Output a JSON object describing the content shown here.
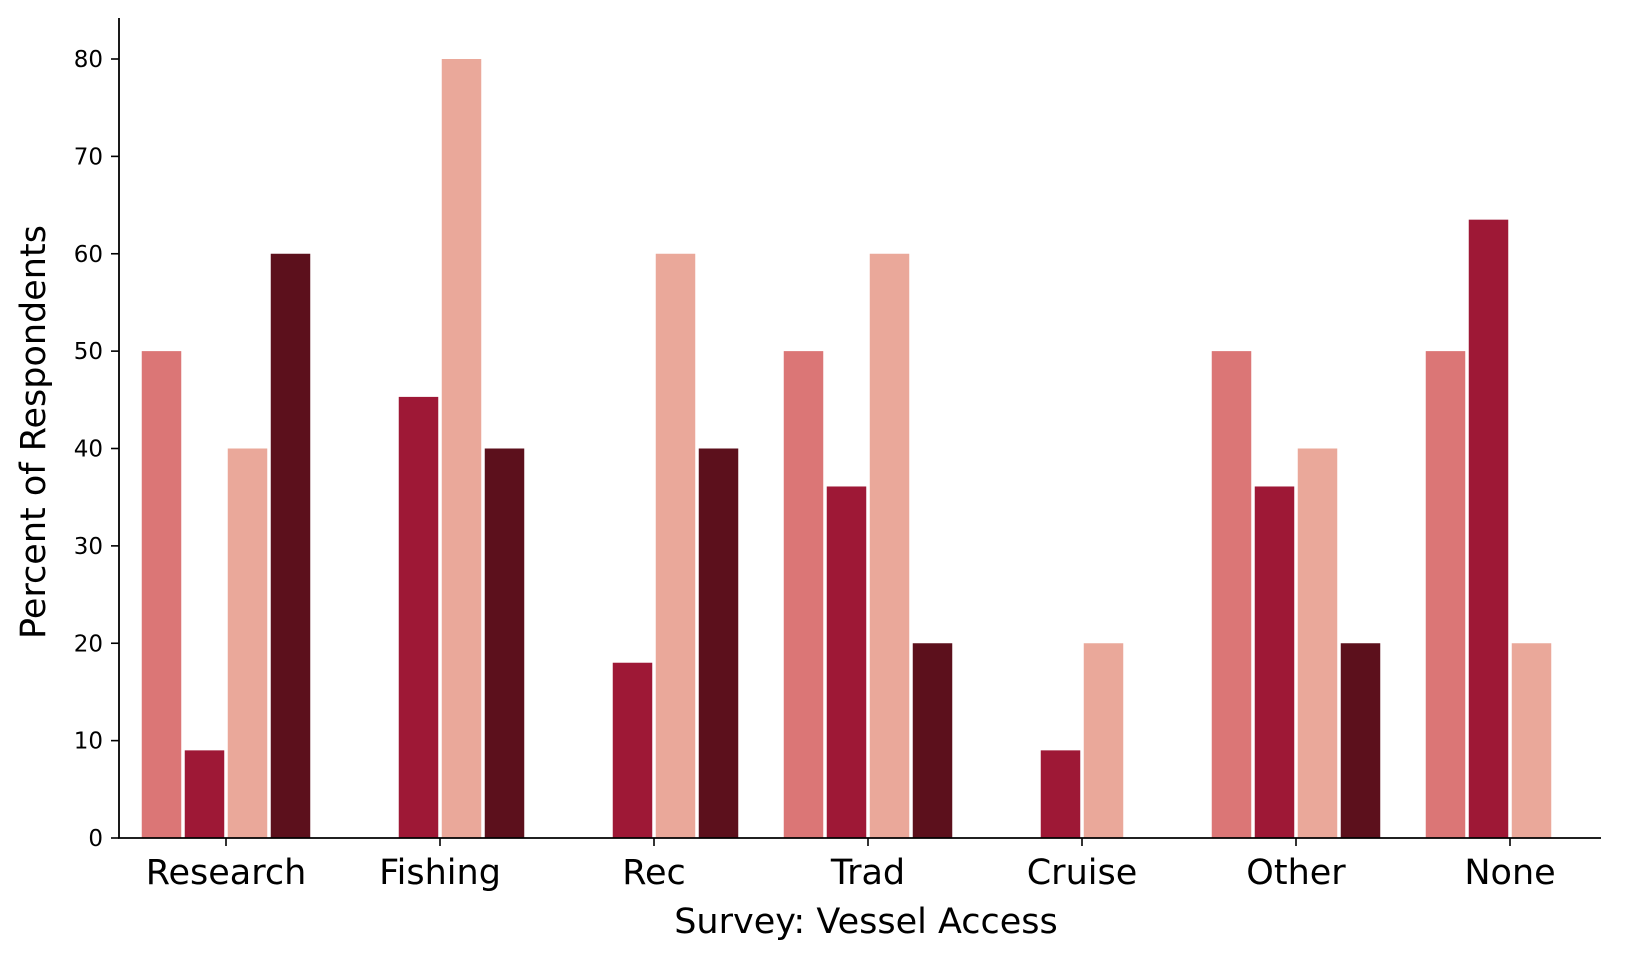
{
  "chart_data": {
    "type": "bar",
    "title": "",
    "xlabel": "Survey: Vessel Access",
    "ylabel": "Percent of Respondents",
    "ylim": [
      0,
      84
    ],
    "yticks": [
      0,
      10,
      20,
      30,
      40,
      50,
      60,
      70,
      80
    ],
    "categories": [
      "Research",
      "Fishing",
      "Rec",
      "Trad",
      "Cruise",
      "Other",
      "None"
    ],
    "grid": false,
    "legend": "none",
    "series": [
      {
        "color": "#db7676",
        "values": [
          50,
          0,
          0,
          50,
          0,
          50,
          50
        ]
      },
      {
        "color": "#9e1836",
        "values": [
          9,
          45.3,
          18,
          36.1,
          9,
          36.1,
          63.5
        ]
      },
      {
        "color": "#eaa89a",
        "values": [
          40,
          80,
          60,
          60,
          20,
          40,
          20
        ]
      },
      {
        "color": "#5c101c",
        "values": [
          60,
          40,
          40,
          20,
          0,
          20,
          0
        ]
      }
    ]
  }
}
